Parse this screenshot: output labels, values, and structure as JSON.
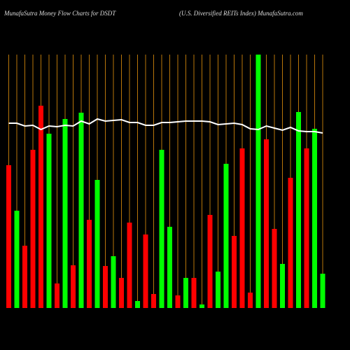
{
  "chart_data": {
    "type": "bar",
    "title": "MunafaSutra  Money Flow  Charts for DSDT",
    "subtitle": "(U.S. Diversified REITs Index) MunafaSutra.com",
    "values": [
      204,
      139,
      89,
      226,
      289,
      249,
      35,
      270,
      61,
      279,
      126,
      183,
      60,
      74,
      43,
      122,
      10,
      105,
      20,
      226,
      116,
      18,
      43,
      43,
      5,
      133,
      52,
      206,
      103,
      228,
      22,
      362,
      241,
      113,
      63,
      186,
      280,
      228,
      256,
      49
    ],
    "colors": [
      "#ff0000",
      "#00ff00",
      "#ff0000",
      "#ff0000",
      "#ff0000",
      "#00ff00",
      "#ff0000",
      "#00ff00",
      "#ff0000",
      "#00ff00",
      "#ff0000",
      "#00ff00",
      "#ff0000",
      "#00ff00",
      "#ff0000",
      "#ff0000",
      "#00ff00",
      "#ff0000",
      "#ff0000",
      "#00ff00",
      "#00ff00",
      "#ff0000",
      "#00ff00",
      "#ff0000",
      "#00ff00",
      "#ff0000",
      "#00ff00",
      "#00ff00",
      "#ff0000",
      "#ff0000",
      "#ff0000",
      "#00ff00",
      "#ff0000",
      "#ff0000",
      "#00ff00",
      "#ff0000",
      "#00ff00",
      "#ff0000",
      "#00ff00",
      "#00ff00"
    ],
    "line": {
      "color": "#ffffff",
      "values": [
        264,
        264,
        260,
        261,
        255,
        260,
        259,
        261,
        260,
        267,
        263,
        270,
        267,
        268,
        269,
        265,
        265,
        261,
        261,
        265,
        265,
        266,
        267,
        267,
        267,
        266,
        262,
        263,
        264,
        262,
        256,
        255,
        260,
        257,
        254,
        258,
        253,
        252,
        252,
        250
      ]
    },
    "gridline_color": "#b8760a"
  }
}
